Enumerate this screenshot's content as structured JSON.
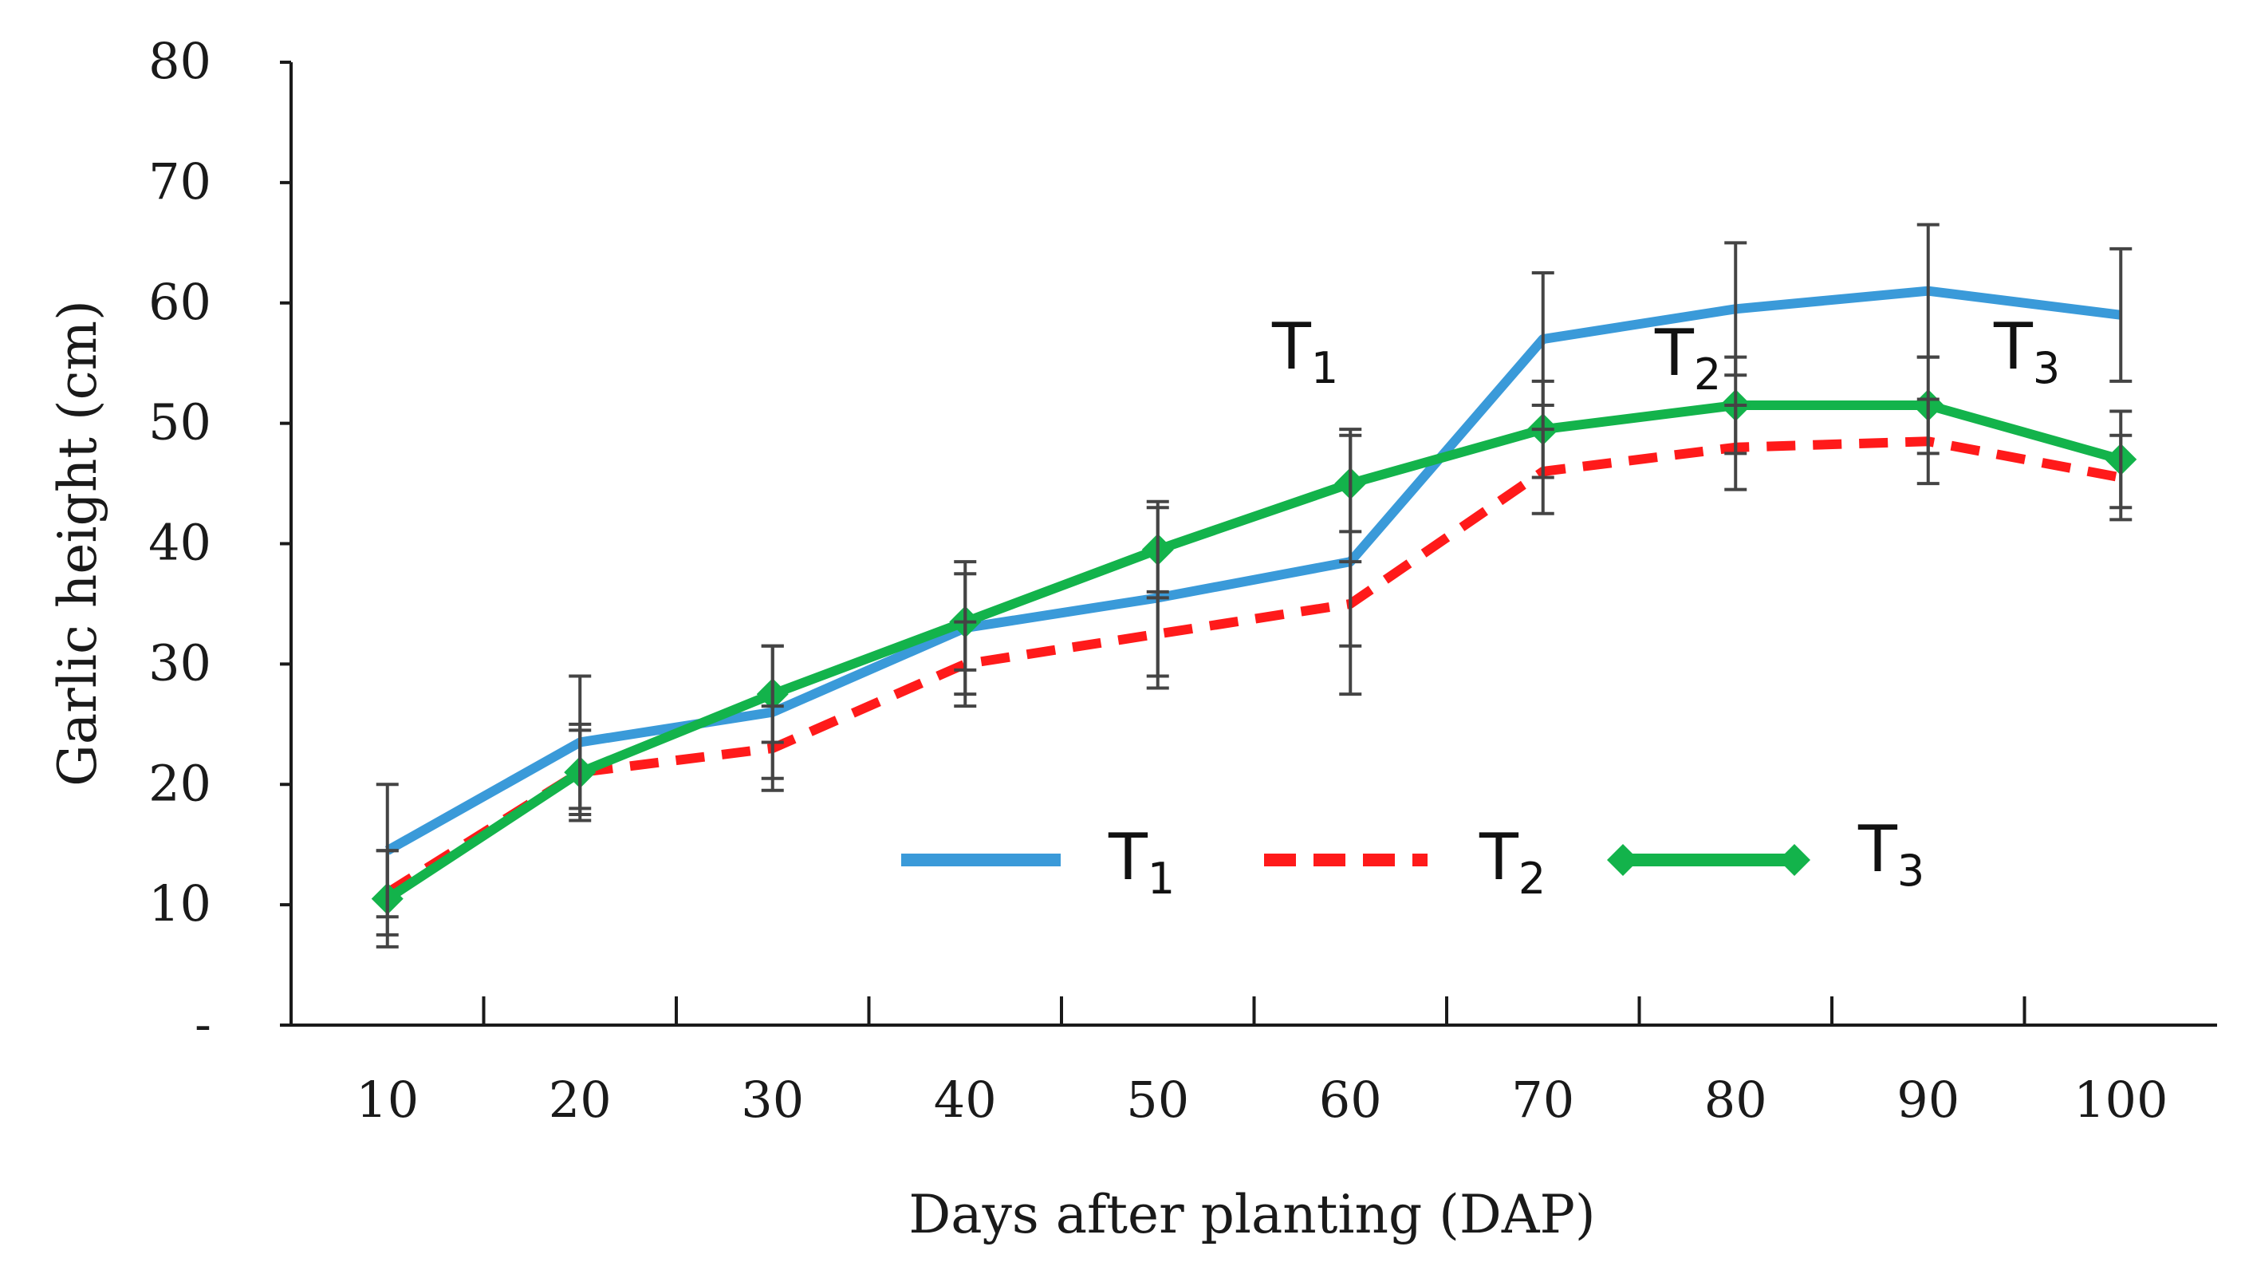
{
  "chart_data": {
    "type": "line",
    "xlabel": "Days after planting (DAP)",
    "ylabel": "Garlic height (cm)",
    "categories": [
      "10",
      "20",
      "30",
      "40",
      "50",
      "60",
      "70",
      "80",
      "90",
      "100"
    ],
    "ylim": [
      0,
      80
    ],
    "yticks": [
      "-",
      "10",
      "20",
      "30",
      "40",
      "50",
      "60",
      "70",
      "80"
    ],
    "series": [
      {
        "name": "T1",
        "label_main": "T",
        "label_sub": "1",
        "color": "#3a9ad9",
        "style": "solid",
        "values": [
          14.5,
          23.5,
          26.0,
          33.0,
          35.5,
          38.5,
          57.0,
          59.5,
          61.0,
          59.0
        ],
        "errors": [
          5.5,
          5.5,
          5.5,
          5.5,
          7.5,
          11.0,
          5.5,
          5.5,
          5.5,
          5.5
        ]
      },
      {
        "name": "T2",
        "label_main": "T",
        "label_sub": "2",
        "color": "#ff1a1a",
        "style": "dashed",
        "values": [
          11.0,
          21.0,
          23.0,
          30.0,
          32.5,
          35.0,
          46.0,
          48.0,
          48.5,
          45.5
        ],
        "errors": [
          3.5,
          3.5,
          3.5,
          3.5,
          3.5,
          3.5,
          3.5,
          3.5,
          3.5,
          3.5
        ]
      },
      {
        "name": "T3",
        "label_main": "T",
        "label_sub": "3",
        "color": "#13b34b",
        "style": "solid-diamond",
        "values": [
          10.5,
          21.0,
          27.5,
          33.5,
          39.5,
          45.0,
          49.5,
          51.5,
          51.5,
          47.0
        ],
        "errors": [
          4.0,
          4.0,
          4.0,
          4.0,
          4.0,
          4.0,
          4.0,
          4.0,
          4.0,
          4.0
        ]
      }
    ]
  }
}
